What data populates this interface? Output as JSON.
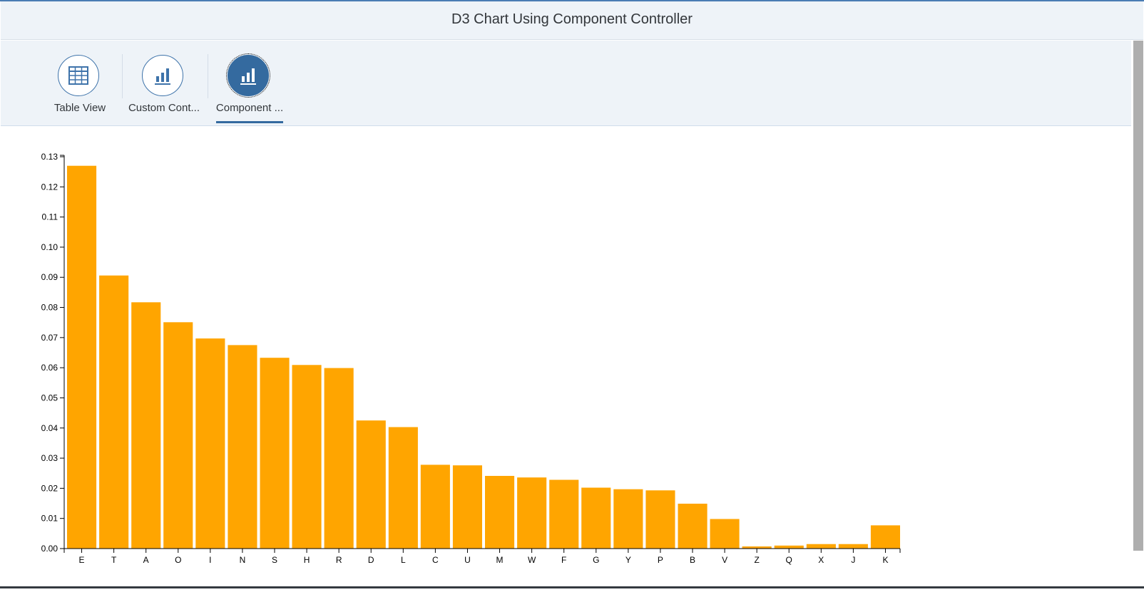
{
  "header": {
    "title": "D3 Chart Using Component Controller"
  },
  "tabs": [
    {
      "label": "Table View",
      "icon": "table-icon",
      "active": false
    },
    {
      "label": "Custom Cont...",
      "icon": "bar-chart-icon",
      "active": false
    },
    {
      "label": "Component ...",
      "icon": "bar-chart-icon",
      "active": true
    }
  ],
  "colors": {
    "accent": "#346a9f",
    "bar": "#ffa500",
    "header_bg": "#eef3f8"
  },
  "chart_data": {
    "type": "bar",
    "categories": [
      "E",
      "T",
      "A",
      "O",
      "I",
      "N",
      "S",
      "H",
      "R",
      "D",
      "L",
      "C",
      "U",
      "M",
      "W",
      "F",
      "G",
      "Y",
      "P",
      "B",
      "V",
      "Z",
      "Q",
      "X",
      "J",
      "K"
    ],
    "values": [
      0.127,
      0.0906,
      0.0817,
      0.0751,
      0.0697,
      0.0675,
      0.0633,
      0.0609,
      0.0599,
      0.0425,
      0.0403,
      0.0278,
      0.0276,
      0.0241,
      0.0236,
      0.0228,
      0.0202,
      0.0197,
      0.0193,
      0.0149,
      0.0098,
      0.0007,
      0.001,
      0.0015,
      0.0015,
      0.0077
    ],
    "y_ticks": [
      "0.00",
      "0.01",
      "0.02",
      "0.03",
      "0.04",
      "0.05",
      "0.06",
      "0.07",
      "0.08",
      "0.09",
      "0.10",
      "0.11",
      "0.12",
      "0.13"
    ],
    "ylim": [
      0,
      0.13
    ],
    "grid": false,
    "legend": "none"
  }
}
